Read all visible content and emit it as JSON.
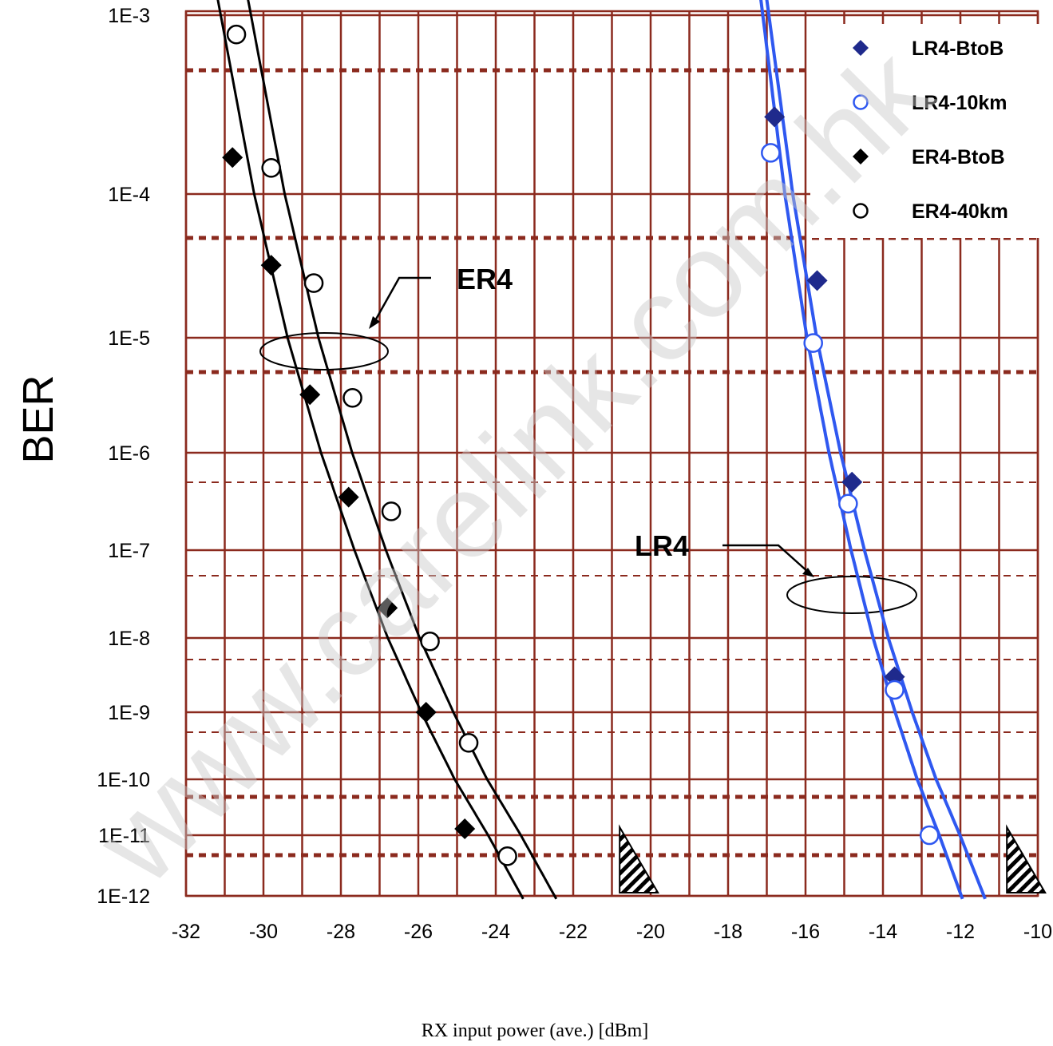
{
  "colors": {
    "grid": "#8b2a1e",
    "blue": "#2f58f0",
    "navy": "#1f2a8c",
    "black": "#000000"
  },
  "watermark": "www.carelink.com.hk",
  "chart_data": {
    "type": "line",
    "ylabel": "BER",
    "xlabel": "RX input power (ave.) [dBm]",
    "x_ticks": [
      "-32",
      "-30",
      "-28",
      "-26",
      "-24",
      "-22",
      "-20",
      "-18",
      "-16",
      "-14",
      "-12",
      "-10"
    ],
    "y_ticks": [
      "1E-3",
      "1E-4",
      "1E-5",
      "1E-6",
      "1E-7",
      "1E-8",
      "1E-9",
      "1E-10",
      "1E-11",
      "1E-12"
    ],
    "xlim": [
      -32,
      -10
    ],
    "ylim": [
      "1E-12",
      "1E-3"
    ],
    "grid": true,
    "legend_position": "top-right",
    "legend": [
      "LR4-BtoB",
      "LR4-10km",
      "ER4-BtoB",
      "ER4-40km"
    ],
    "annotations": [
      {
        "text": "ER4"
      },
      {
        "text": "LR4"
      }
    ],
    "series": [
      {
        "name": "LR4-BtoB",
        "marker": "diamond",
        "color": "#1f2a8c",
        "x": [
          -16.8,
          -15.7,
          -14.8,
          -13.7
        ],
        "y": [
          0.00027,
          2.5e-05,
          5e-07,
          3e-09
        ]
      },
      {
        "name": "LR4-10km",
        "marker": "circle",
        "color": "#2f58f0",
        "x": [
          -16.9,
          -15.8,
          -14.9,
          -13.7,
          -12.8
        ],
        "y": [
          0.00017,
          9e-06,
          3e-07,
          2e-09,
          1e-11
        ]
      },
      {
        "name": "ER4-BtoB",
        "marker": "diamond",
        "color": "#000000",
        "x": [
          -30.8,
          -29.8,
          -28.8,
          -27.8,
          -26.8,
          -25.8,
          -24.8
        ],
        "y": [
          0.00016,
          3.2e-05,
          3.2e-06,
          3.5e-07,
          2.2e-08,
          1e-09,
          1.3e-11
        ]
      },
      {
        "name": "ER4-40km",
        "marker": "circle",
        "color": "#000000",
        "x": [
          -30.7,
          -29.8,
          -28.7,
          -27.7,
          -26.7,
          -25.7,
          -24.7,
          -23.7
        ],
        "y": [
          0.00078,
          0.00014,
          2.4e-05,
          3e-06,
          2.5e-07,
          9e-09,
          3.5e-10,
          4.5e-12
        ]
      }
    ]
  }
}
